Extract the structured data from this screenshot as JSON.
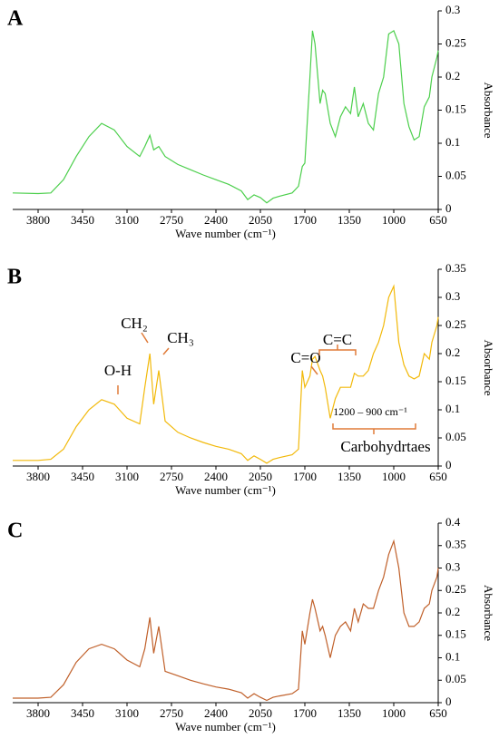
{
  "chart_data": [
    {
      "type": "line",
      "panel": "A",
      "x_label": "Wave number (cm⁻¹)",
      "y_label": "Absorbance",
      "color": "#4ccf4c",
      "x": [
        4000,
        3800,
        3700,
        3600,
        3500,
        3400,
        3300,
        3200,
        3100,
        3000,
        2960,
        2920,
        2890,
        2850,
        2800,
        2700,
        2600,
        2500,
        2400,
        2300,
        2200,
        2150,
        2100,
        2050,
        2000,
        1950,
        1900,
        1800,
        1750,
        1720,
        1700,
        1660,
        1640,
        1620,
        1580,
        1560,
        1540,
        1500,
        1460,
        1420,
        1380,
        1340,
        1310,
        1280,
        1240,
        1200,
        1160,
        1120,
        1080,
        1040,
        1000,
        960,
        920,
        880,
        840,
        800,
        760,
        720,
        700,
        660,
        650
      ],
      "values": [
        0.025,
        0.024,
        0.025,
        0.045,
        0.08,
        0.11,
        0.13,
        0.12,
        0.095,
        0.08,
        0.095,
        0.112,
        0.09,
        0.095,
        0.08,
        0.068,
        0.06,
        0.052,
        0.045,
        0.038,
        0.028,
        0.015,
        0.022,
        0.018,
        0.01,
        0.017,
        0.02,
        0.025,
        0.035,
        0.065,
        0.07,
        0.2,
        0.27,
        0.25,
        0.16,
        0.18,
        0.175,
        0.13,
        0.11,
        0.14,
        0.155,
        0.145,
        0.185,
        0.14,
        0.16,
        0.13,
        0.12,
        0.175,
        0.2,
        0.265,
        0.27,
        0.25,
        0.16,
        0.125,
        0.105,
        0.11,
        0.155,
        0.17,
        0.2,
        0.23,
        0.24
      ],
      "xlim": [
        4000,
        650
      ],
      "xticks": [
        3800,
        3450,
        3100,
        2750,
        2400,
        2050,
        1700,
        1350,
        1000,
        650
      ],
      "ylim": [
        0,
        0.3
      ],
      "yticks": [
        0,
        0.05,
        0.1,
        0.15,
        0.2,
        0.25,
        0.3
      ]
    },
    {
      "type": "line",
      "panel": "B",
      "x_label": "Wave number (cm⁻¹)",
      "y_label": "Absorbance",
      "color": "#f2b90a",
      "x": [
        4000,
        3800,
        3700,
        3600,
        3500,
        3400,
        3300,
        3200,
        3100,
        3000,
        2960,
        2920,
        2890,
        2850,
        2800,
        2700,
        2600,
        2500,
        2400,
        2300,
        2200,
        2150,
        2100,
        2050,
        2000,
        1950,
        1900,
        1800,
        1750,
        1720,
        1700,
        1660,
        1640,
        1620,
        1580,
        1560,
        1540,
        1500,
        1460,
        1420,
        1380,
        1340,
        1310,
        1280,
        1240,
        1200,
        1160,
        1120,
        1080,
        1040,
        1000,
        960,
        920,
        880,
        840,
        800,
        760,
        720,
        700,
        660,
        650
      ],
      "values": [
        0.01,
        0.01,
        0.012,
        0.03,
        0.07,
        0.1,
        0.118,
        0.11,
        0.085,
        0.075,
        0.14,
        0.2,
        0.11,
        0.17,
        0.08,
        0.06,
        0.05,
        0.042,
        0.035,
        0.03,
        0.022,
        0.01,
        0.018,
        0.012,
        0.005,
        0.012,
        0.015,
        0.02,
        0.03,
        0.17,
        0.14,
        0.16,
        0.19,
        0.195,
        0.17,
        0.16,
        0.14,
        0.085,
        0.12,
        0.14,
        0.14,
        0.14,
        0.165,
        0.16,
        0.16,
        0.17,
        0.2,
        0.22,
        0.25,
        0.3,
        0.32,
        0.22,
        0.18,
        0.16,
        0.155,
        0.16,
        0.2,
        0.19,
        0.22,
        0.25,
        0.265
      ],
      "xlim": [
        4000,
        650
      ],
      "xticks": [
        3800,
        3450,
        3100,
        2750,
        2400,
        2050,
        1700,
        1350,
        1000,
        650
      ],
      "ylim": [
        0,
        0.35
      ],
      "yticks": [
        0,
        0.05,
        0.1,
        0.15,
        0.2,
        0.25,
        0.3,
        0.35
      ],
      "annotations": [
        "O-H",
        "CH₂",
        "CH₃",
        "C=O",
        "C=C",
        "1200 – 900 cm⁻¹",
        "Carbohydrtaes"
      ]
    },
    {
      "type": "line",
      "panel": "C",
      "x_label": "Wave number (cm⁻¹)",
      "y_label": "Absorbance",
      "color": "#c0602a",
      "x": [
        4000,
        3800,
        3700,
        3600,
        3500,
        3400,
        3300,
        3200,
        3100,
        3000,
        2960,
        2920,
        2890,
        2850,
        2800,
        2700,
        2600,
        2500,
        2400,
        2300,
        2200,
        2150,
        2100,
        2050,
        2000,
        1950,
        1900,
        1800,
        1750,
        1720,
        1700,
        1660,
        1640,
        1620,
        1580,
        1560,
        1540,
        1500,
        1460,
        1420,
        1380,
        1340,
        1310,
        1280,
        1240,
        1200,
        1160,
        1120,
        1080,
        1040,
        1000,
        960,
        920,
        880,
        840,
        800,
        760,
        720,
        700,
        660,
        650
      ],
      "values": [
        0.01,
        0.01,
        0.012,
        0.04,
        0.09,
        0.12,
        0.13,
        0.12,
        0.095,
        0.08,
        0.12,
        0.19,
        0.11,
        0.17,
        0.07,
        0.06,
        0.05,
        0.042,
        0.035,
        0.03,
        0.022,
        0.01,
        0.02,
        0.012,
        0.005,
        0.012,
        0.015,
        0.02,
        0.03,
        0.16,
        0.13,
        0.2,
        0.23,
        0.21,
        0.16,
        0.17,
        0.15,
        0.1,
        0.15,
        0.17,
        0.18,
        0.16,
        0.21,
        0.18,
        0.22,
        0.21,
        0.21,
        0.25,
        0.28,
        0.33,
        0.36,
        0.3,
        0.2,
        0.17,
        0.17,
        0.18,
        0.21,
        0.22,
        0.25,
        0.28,
        0.3
      ],
      "xlim": [
        4000,
        650
      ],
      "xticks": [
        3800,
        3450,
        3100,
        2750,
        2400,
        2050,
        1700,
        1350,
        1000,
        650
      ],
      "ylim": [
        0,
        0.4
      ],
      "yticks": [
        0,
        0.05,
        0.1,
        0.15,
        0.2,
        0.25,
        0.3,
        0.35,
        0.4
      ]
    }
  ]
}
